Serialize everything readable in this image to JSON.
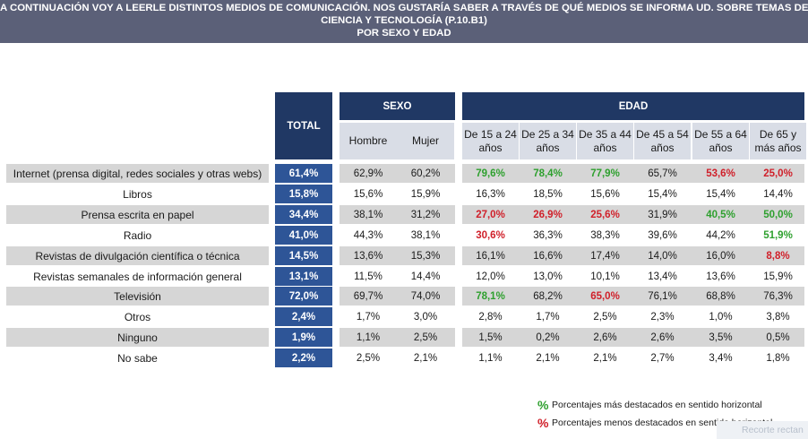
{
  "title_lines": [
    "A CONTINUACIÓN VOY A LEERLE DISTINTOS MEDIOS DE COMUNICACIÓN. NOS GUSTARÍA SABER A TRAVÉS DE QUÉ MEDIOS SE INFORMA UD. SOBRE TEMAS DE",
    "CIENCIA Y TECNOLOGÍA (P.10.B1)",
    "POR SEXO Y EDAD"
  ],
  "headers": {
    "total": "TOTAL",
    "sexo": "SEXO",
    "edad": "EDAD",
    "sexo_cols": [
      "Hombre",
      "Mujer"
    ],
    "edad_cols": [
      [
        "De 15 a 24",
        "años"
      ],
      [
        "De 25 a 34",
        "años"
      ],
      [
        "De 35 a 44",
        "años"
      ],
      [
        "De 45 a 54",
        "años"
      ],
      [
        "De 55 a 64",
        "años"
      ],
      [
        "De 65 y",
        "más años"
      ]
    ]
  },
  "rows": [
    {
      "label": "Internet (prensa digital, redes sociales y otras webs)",
      "total": "61,4%",
      "sexo": [
        "62,9%",
        "60,2%"
      ],
      "edad": [
        "79,6%",
        "78,4%",
        "77,9%",
        "65,7%",
        "53,6%",
        "25,0%"
      ],
      "marks": [
        "hi",
        "hi",
        "hi",
        "",
        "lo",
        "lo"
      ]
    },
    {
      "label": "Libros",
      "total": "15,8%",
      "sexo": [
        "15,6%",
        "15,9%"
      ],
      "edad": [
        "16,3%",
        "18,5%",
        "15,6%",
        "15,4%",
        "15,4%",
        "14,4%"
      ],
      "marks": [
        "",
        "",
        "",
        "",
        "",
        ""
      ]
    },
    {
      "label": "Prensa escrita en papel",
      "total": "34,4%",
      "sexo": [
        "38,1%",
        "31,2%"
      ],
      "edad": [
        "27,0%",
        "26,9%",
        "25,6%",
        "31,9%",
        "40,5%",
        "50,0%"
      ],
      "marks": [
        "lo",
        "lo",
        "lo",
        "",
        "hi",
        "hi"
      ]
    },
    {
      "label": "Radio",
      "total": "41,0%",
      "sexo": [
        "44,3%",
        "38,1%"
      ],
      "edad": [
        "30,6%",
        "36,3%",
        "38,3%",
        "39,6%",
        "44,2%",
        "51,9%"
      ],
      "marks": [
        "lo",
        "",
        "",
        "",
        "",
        "hi"
      ]
    },
    {
      "label": "Revistas de divulgación científica o técnica",
      "total": "14,5%",
      "sexo": [
        "13,6%",
        "15,3%"
      ],
      "edad": [
        "16,1%",
        "16,6%",
        "17,4%",
        "14,0%",
        "16,0%",
        "8,8%"
      ],
      "marks": [
        "",
        "",
        "",
        "",
        "",
        "lo"
      ]
    },
    {
      "label": "Revistas semanales de información general",
      "total": "13,1%",
      "sexo": [
        "11,5%",
        "14,4%"
      ],
      "edad": [
        "12,0%",
        "13,0%",
        "10,1%",
        "13,4%",
        "13,6%",
        "15,9%"
      ],
      "marks": [
        "",
        "",
        "",
        "",
        "",
        ""
      ]
    },
    {
      "label": "Televisión",
      "total": "72,0%",
      "sexo": [
        "69,7%",
        "74,0%"
      ],
      "edad": [
        "78,1%",
        "68,2%",
        "65,0%",
        "76,1%",
        "68,8%",
        "76,3%"
      ],
      "marks": [
        "hi",
        "",
        "lo",
        "",
        "",
        ""
      ]
    },
    {
      "label": "Otros",
      "total": "2,4%",
      "sexo": [
        "1,7%",
        "3,0%"
      ],
      "edad": [
        "2,8%",
        "1,7%",
        "2,5%",
        "2,3%",
        "1,0%",
        "3,8%"
      ],
      "marks": [
        "",
        "",
        "",
        "",
        "",
        ""
      ]
    },
    {
      "label": "Ninguno",
      "total": "1,9%",
      "sexo": [
        "1,1%",
        "2,5%"
      ],
      "edad": [
        "1,5%",
        "0,2%",
        "2,6%",
        "2,6%",
        "3,5%",
        "0,5%"
      ],
      "marks": [
        "",
        "",
        "",
        "",
        "",
        ""
      ]
    },
    {
      "label": "No sabe",
      "total": "2,2%",
      "sexo": [
        "2,5%",
        "2,1%"
      ],
      "edad": [
        "1,1%",
        "2,1%",
        "2,1%",
        "2,7%",
        "3,4%",
        "1,8%"
      ],
      "marks": [
        "",
        "",
        "",
        "",
        "",
        ""
      ]
    }
  ],
  "legend": {
    "symbol": "%",
    "high_text": "Porcentajes más destacados en sentido horizontal",
    "low_text": "Porcentajes menos destacados en sentido horizontal",
    "high_color": "#2ea02e",
    "low_color": "#d0202a"
  },
  "watermark": "Recorte rectan"
}
